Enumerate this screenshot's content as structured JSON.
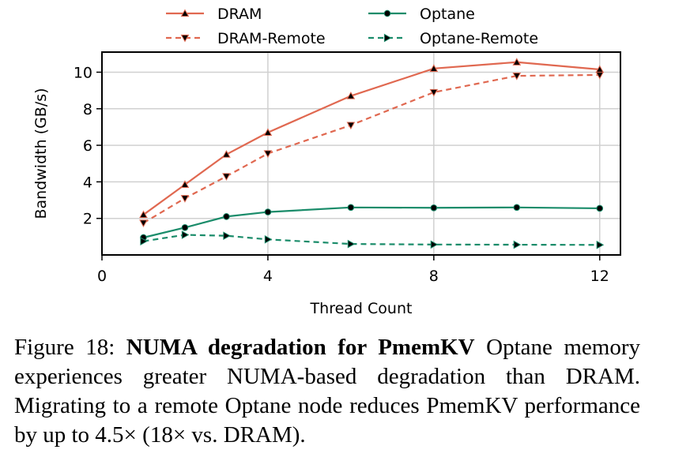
{
  "chart_data": {
    "type": "line",
    "xlabel": "Thread Count",
    "ylabel": "Bandwidth (GB/s)",
    "xlim": [
      0,
      12.5
    ],
    "ylim": [
      0,
      11.1
    ],
    "xticks": [
      0,
      4,
      8,
      12
    ],
    "yticks": [
      2,
      4,
      6,
      8,
      10
    ],
    "grid": true,
    "legend_position": "top",
    "series": [
      {
        "name": "DRAM",
        "color": "#e06850",
        "dash": "solid",
        "marker": "triangle-up",
        "x": [
          1,
          2,
          3,
          4,
          6,
          8,
          10,
          12
        ],
        "values": [
          2.2,
          3.85,
          5.5,
          6.7,
          8.7,
          10.2,
          10.55,
          10.15
        ]
      },
      {
        "name": "DRAM-Remote",
        "color": "#e06850",
        "dash": "dashed",
        "marker": "triangle-down",
        "x": [
          1,
          2,
          3,
          4,
          6,
          8,
          10,
          12
        ],
        "values": [
          1.75,
          3.1,
          4.3,
          5.55,
          7.1,
          8.9,
          9.8,
          9.85
        ]
      },
      {
        "name": "Optane",
        "color": "#1a8c6a",
        "dash": "solid",
        "marker": "circle",
        "x": [
          1,
          2,
          3,
          4,
          6,
          8,
          10,
          12
        ],
        "values": [
          0.95,
          1.5,
          2.1,
          2.35,
          2.6,
          2.58,
          2.6,
          2.55
        ]
      },
      {
        "name": "Optane-Remote",
        "color": "#1a8c6a",
        "dash": "dashed",
        "marker": "triangle-right",
        "x": [
          1,
          2,
          3,
          4,
          6,
          8,
          10,
          12
        ],
        "values": [
          0.75,
          1.1,
          1.05,
          0.85,
          0.6,
          0.57,
          0.56,
          0.55
        ]
      }
    ]
  },
  "caption": {
    "figure_label": "Figure 18:",
    "bold_title": "NUMA degradation for PmemKV",
    "body": " Optane memory experiences greater NUMA-based degradation than DRAM. Migrating to a remote Optane node reduces PmemKV performance by up to 4.5× (18× vs. DRAM)."
  }
}
